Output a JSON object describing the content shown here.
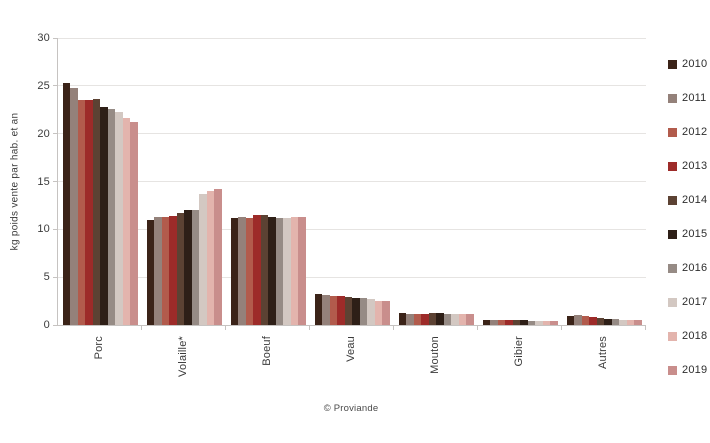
{
  "chart_data": {
    "type": "bar",
    "title": "",
    "xlabel": "",
    "ylabel": "kg poids vente par hab. et an",
    "source": "© Proviande",
    "categories": [
      "Porc",
      "Volaille*",
      "Boeuf",
      "Veau",
      "Mouton",
      "Gibier",
      "Autres"
    ],
    "ylim": [
      0,
      30
    ],
    "yticks": [
      0,
      5,
      10,
      15,
      20,
      25,
      30
    ],
    "grid": true,
    "legend_position": "right",
    "series": [
      {
        "name": "2010",
        "color": "#3B2318",
        "values": [
          25.3,
          11.0,
          11.2,
          3.2,
          1.25,
          0.55,
          0.95
        ]
      },
      {
        "name": "2011",
        "color": "#94817A",
        "values": [
          24.8,
          11.3,
          11.25,
          3.1,
          1.2,
          0.55,
          1.0
        ]
      },
      {
        "name": "2012",
        "color": "#B25B4C",
        "values": [
          23.5,
          11.25,
          11.2,
          3.05,
          1.2,
          0.5,
          0.95
        ]
      },
      {
        "name": "2013",
        "color": "#9D2B29",
        "values": [
          23.5,
          11.35,
          11.5,
          3.0,
          1.2,
          0.55,
          0.85
        ]
      },
      {
        "name": "2014",
        "color": "#5C4233",
        "values": [
          23.6,
          11.75,
          11.45,
          2.95,
          1.3,
          0.5,
          0.7
        ]
      },
      {
        "name": "2015",
        "color": "#2E1F17",
        "values": [
          22.8,
          12.0,
          11.3,
          2.85,
          1.25,
          0.5,
          0.65
        ]
      },
      {
        "name": "2016",
        "color": "#968B85",
        "values": [
          22.6,
          12.05,
          11.2,
          2.8,
          1.2,
          0.45,
          0.6
        ]
      },
      {
        "name": "2017",
        "color": "#D3C8C2",
        "values": [
          22.3,
          13.7,
          11.15,
          2.7,
          1.15,
          0.45,
          0.55
        ]
      },
      {
        "name": "2018",
        "color": "#E3B4AD",
        "values": [
          21.6,
          14.05,
          11.3,
          2.55,
          1.15,
          0.45,
          0.5
        ]
      },
      {
        "name": "2019",
        "color": "#C98E8C",
        "values": [
          21.2,
          14.2,
          11.3,
          2.5,
          1.2,
          0.45,
          0.5
        ]
      }
    ]
  }
}
